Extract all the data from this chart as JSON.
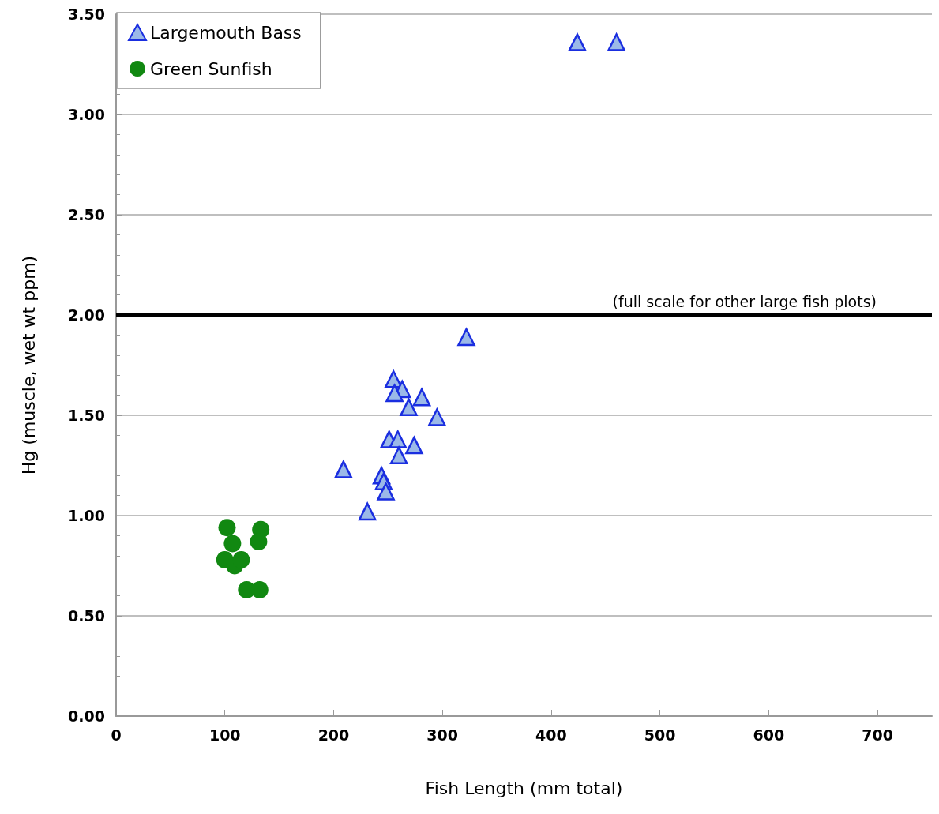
{
  "chart_data": {
    "type": "scatter",
    "xlabel": "Fish Length (mm total)",
    "ylabel": "Hg (muscle, wet wt ppm)",
    "xlim": [
      0,
      750
    ],
    "xticks": [
      0,
      100,
      200,
      300,
      400,
      500,
      600,
      700
    ],
    "ylim": [
      0,
      3.5
    ],
    "yticks": [
      {
        "value": 0,
        "label": "0.00"
      },
      {
        "value": 0.5,
        "label": "0.50"
      },
      {
        "value": 1,
        "label": "1.00"
      },
      {
        "value": 1.5,
        "label": "1.50"
      },
      {
        "value": 2,
        "label": "2.00"
      },
      {
        "value": 2.5,
        "label": "2.50"
      },
      {
        "value": 3,
        "label": "3.00"
      },
      {
        "value": 3.5,
        "label": "3.50"
      }
    ],
    "grid": "y",
    "legend": "top left",
    "ref_lines": [
      {
        "axis": "y",
        "value": 2,
        "label": "(full scale for other large fish plots)",
        "color": "#000000"
      }
    ],
    "series": [
      {
        "name": "Largemouth Bass",
        "color": "#9bb9e8",
        "marker": "triangle",
        "x": [
          424,
          460,
          322,
          255,
          263,
          256,
          281,
          295,
          269,
          251,
          259,
          274,
          260,
          209,
          244,
          246,
          248,
          231
        ],
        "values": [
          3.36,
          3.36,
          1.89,
          1.68,
          1.63,
          1.61,
          1.59,
          1.49,
          1.54,
          1.38,
          1.38,
          1.35,
          1.3,
          1.23,
          1.2,
          1.17,
          1.12,
          1.02
        ]
      },
      {
        "name": "Green Sunfish",
        "color": "#118811",
        "marker": "circle",
        "x": [
          102,
          107,
          100,
          109,
          115,
          133,
          131,
          120,
          132
        ],
        "values": [
          0.94,
          0.86,
          0.78,
          0.75,
          0.78,
          0.93,
          0.87,
          0.63,
          0.63
        ]
      }
    ]
  }
}
